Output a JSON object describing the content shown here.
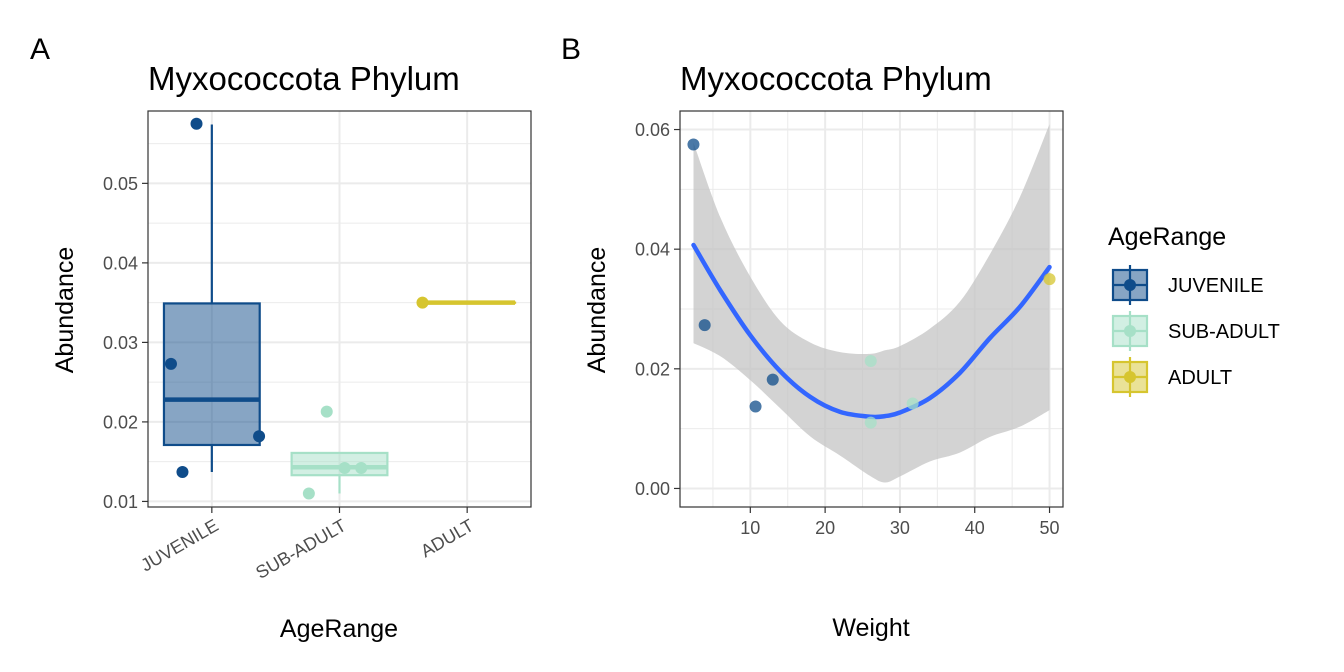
{
  "colors": {
    "JUVENILE": "#0f4c8a",
    "SUB-ADULT": "#a6e0c7",
    "ADULT": "#d6c52f",
    "smooth": "#3366ff",
    "ribbon": "#c4c4c4",
    "grid": "#ebebeb"
  },
  "legend": {
    "title": "AgeRange",
    "items": [
      "JUVENILE",
      "SUB-ADULT",
      "ADULT"
    ]
  },
  "chart_data": [
    {
      "tag": "A",
      "type": "box",
      "title": "Myxococcota Phylum",
      "xlabel": "AgeRange",
      "ylabel": "Abundance",
      "categories": [
        "JUVENILE",
        "SUB-ADULT",
        "ADULT"
      ],
      "ylim": [
        0.0093,
        0.0591
      ],
      "yticks": [
        0.01,
        0.02,
        0.03,
        0.04,
        0.05
      ],
      "ytick_labels": [
        "0.01",
        "0.02",
        "0.03",
        "0.04",
        "0.05"
      ],
      "grid": true,
      "boxes": [
        {
          "group": "JUVENILE",
          "q1": 0.0171,
          "median": 0.0228,
          "q3": 0.0349,
          "lower": 0.0137,
          "upper": 0.0574
        },
        {
          "group": "SUB-ADULT",
          "q1": 0.0133,
          "median": 0.0143,
          "q3": 0.0161,
          "lower": 0.011,
          "upper": 0.0161
        },
        {
          "group": "ADULT",
          "q1": 0.035,
          "median": 0.035,
          "q3": 0.035,
          "lower": 0.035,
          "upper": 0.035
        }
      ],
      "points": [
        {
          "group": "JUVENILE",
          "jitter": -0.12,
          "y": 0.0575
        },
        {
          "group": "JUVENILE",
          "jitter": -0.32,
          "y": 0.0273
        },
        {
          "group": "JUVENILE",
          "jitter": 0.37,
          "y": 0.0182
        },
        {
          "group": "JUVENILE",
          "jitter": -0.23,
          "y": 0.0137
        },
        {
          "group": "SUB-ADULT",
          "jitter": -0.1,
          "y": 0.0213
        },
        {
          "group": "SUB-ADULT",
          "jitter": 0.04,
          "y": 0.0142
        },
        {
          "group": "SUB-ADULT",
          "jitter": 0.17,
          "y": 0.0142
        },
        {
          "group": "SUB-ADULT",
          "jitter": -0.24,
          "y": 0.011
        },
        {
          "group": "ADULT",
          "jitter": -0.35,
          "y": 0.035
        }
      ]
    },
    {
      "tag": "B",
      "type": "scatter",
      "title": "Myxococcota Phylum",
      "xlabel": "Weight",
      "ylabel": "Abundance",
      "xlim": [
        0.6,
        51.8
      ],
      "ylim": [
        -0.0031,
        0.0631
      ],
      "xticks": [
        10,
        20,
        30,
        40,
        50
      ],
      "xtick_labels": [
        "10",
        "20",
        "30",
        "40",
        "50"
      ],
      "yticks": [
        0.0,
        0.02,
        0.04,
        0.06
      ],
      "ytick_labels": [
        "0.00",
        "0.02",
        "0.04",
        "0.06"
      ],
      "grid": true,
      "points": [
        {
          "group": "JUVENILE",
          "x": 2.4,
          "y": 0.0575
        },
        {
          "group": "JUVENILE",
          "x": 3.9,
          "y": 0.0273
        },
        {
          "group": "JUVENILE",
          "x": 10.7,
          "y": 0.0137
        },
        {
          "group": "JUVENILE",
          "x": 13.0,
          "y": 0.0182
        },
        {
          "group": "SUB-ADULT",
          "x": 26.1,
          "y": 0.0213
        },
        {
          "group": "SUB-ADULT",
          "x": 26.1,
          "y": 0.011
        },
        {
          "group": "SUB-ADULT",
          "x": 31.7,
          "y": 0.0142
        },
        {
          "group": "ADULT",
          "x": 50.0,
          "y": 0.035
        }
      ],
      "smooth": {
        "method": "quadratic",
        "x": [
          2.4,
          6,
          10,
          14,
          18,
          22,
          26,
          28,
          30,
          34,
          38,
          42,
          46,
          50
        ],
        "y": [
          0.0407,
          0.0331,
          0.0256,
          0.0196,
          0.0153,
          0.0128,
          0.012,
          0.0121,
          0.0127,
          0.0151,
          0.0193,
          0.0251,
          0.0303,
          0.037
        ],
        "lower": [
          0.0243,
          0.0221,
          0.0181,
          0.0134,
          0.0087,
          0.0055,
          0.0021,
          0.001,
          0.002,
          0.0045,
          0.006,
          0.0086,
          0.0103,
          0.0131
        ],
        "upper": [
          0.0578,
          0.0453,
          0.0354,
          0.028,
          0.0244,
          0.0228,
          0.0225,
          0.0231,
          0.0238,
          0.0267,
          0.0312,
          0.0391,
          0.0486,
          0.0609
        ]
      }
    }
  ]
}
